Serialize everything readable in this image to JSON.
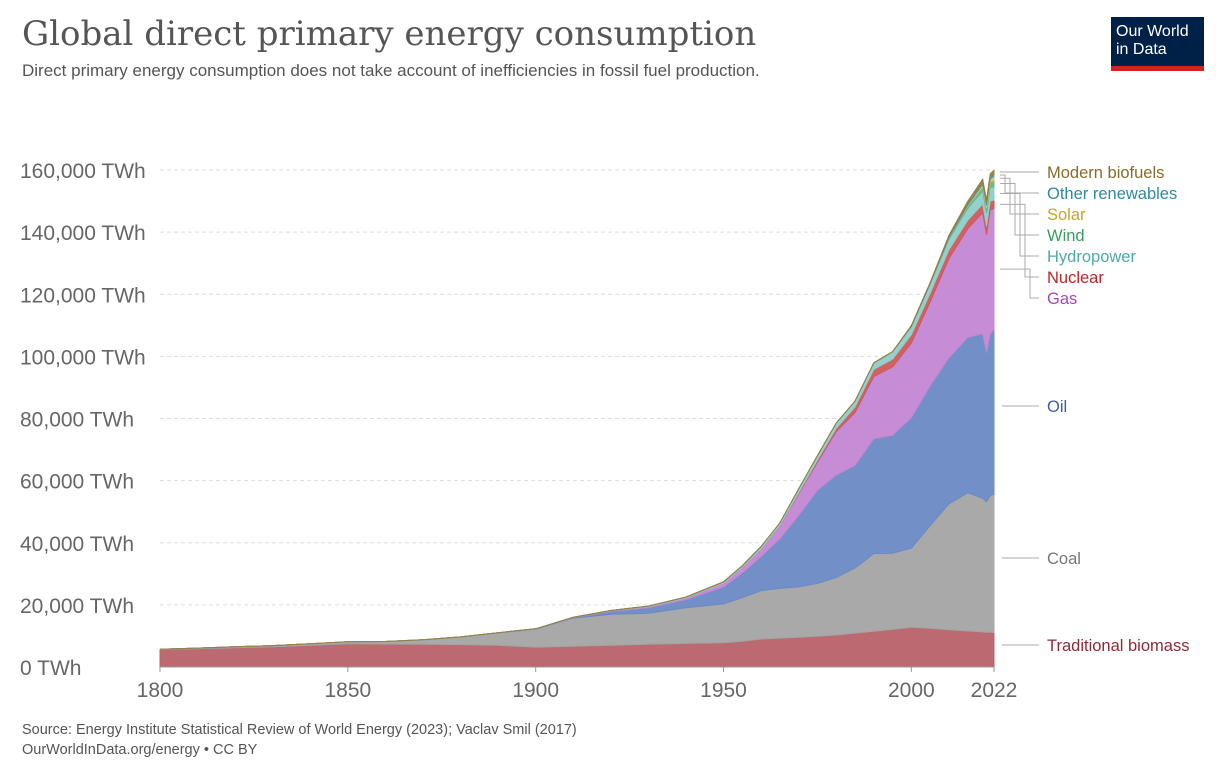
{
  "header": {
    "title": "Global direct primary energy consumption",
    "subtitle": "Direct primary energy consumption does not take account of inefficiencies in fossil fuel production.",
    "logo_line1": "Our World",
    "logo_line2": "in Data"
  },
  "footer": {
    "source": "Source: Energy Institute Statistical Review of World Energy (2023); Vaclav Smil (2017)",
    "link": "OurWorldInData.org/energy • CC BY"
  },
  "chart_data": {
    "type": "area",
    "stacked": true,
    "title": "Global direct primary energy consumption",
    "subtitle": "Direct primary energy consumption does not take account of inefficiencies in fossil fuel production.",
    "xlabel": "",
    "ylabel": "",
    "unit": "TWh",
    "xlim": [
      1800,
      2022
    ],
    "ylim": [
      0,
      160000
    ],
    "grid": "horizontal dashed",
    "x_ticks": [
      1800,
      1850,
      1900,
      1950,
      2000,
      2022
    ],
    "y_ticks": [
      {
        "value": 0,
        "label": "0 TWh"
      },
      {
        "value": 20000,
        "label": "20,000 TWh"
      },
      {
        "value": 40000,
        "label": "40,000 TWh"
      },
      {
        "value": 60000,
        "label": "60,000 TWh"
      },
      {
        "value": 80000,
        "label": "80,000 TWh"
      },
      {
        "value": 100000,
        "label": "100,000 TWh"
      },
      {
        "value": 120000,
        "label": "120,000 TWh"
      },
      {
        "value": 140000,
        "label": "140,000 TWh"
      },
      {
        "value": 160000,
        "label": "160,000 TWh"
      }
    ],
    "legend_placement": "right, labels at series ends",
    "x": [
      1800,
      1810,
      1820,
      1830,
      1840,
      1850,
      1860,
      1870,
      1880,
      1890,
      1900,
      1910,
      1920,
      1930,
      1940,
      1950,
      1955,
      1960,
      1965,
      1970,
      1975,
      1980,
      1985,
      1990,
      1995,
      2000,
      2005,
      2010,
      2015,
      2019,
      2020,
      2021,
      2022
    ],
    "series": [
      {
        "name": "Traditional biomass",
        "color": "#b8626a",
        "values": [
          5600,
          5900,
          6200,
          6500,
          7000,
          7500,
          7400,
          7300,
          7200,
          7000,
          6400,
          6700,
          7000,
          7300,
          7600,
          7800,
          8300,
          9000,
          9300,
          9600,
          9900,
          10300,
          10900,
          11500,
          12100,
          12800,
          12500,
          12000,
          11600,
          11300,
          11200,
          11200,
          11100
        ]
      },
      {
        "name": "Coal",
        "color": "#a4a4a4",
        "values": [
          100,
          200,
          300,
          400,
          500,
          600,
          800,
          1500,
          2500,
          4000,
          5800,
          9000,
          10000,
          10000,
          11500,
          12500,
          14000,
          15600,
          16000,
          16200,
          17000,
          18500,
          21000,
          25000,
          24500,
          25500,
          33000,
          40500,
          44500,
          43000,
          42000,
          44000,
          44500
        ]
      },
      {
        "name": "Oil",
        "color": "#6a8ac4",
        "values": [
          0,
          0,
          0,
          0,
          0,
          0,
          0,
          0,
          0,
          50,
          100,
          200,
          900,
          1800,
          2600,
          5500,
          8000,
          11000,
          16000,
          23000,
          30000,
          33000,
          33000,
          37000,
          38000,
          42000,
          45000,
          47000,
          50000,
          53000,
          48000,
          52000,
          53000
        ]
      },
      {
        "name": "Gas",
        "color": "#c386d3",
        "values": [
          0,
          0,
          0,
          0,
          0,
          0,
          0,
          0,
          0,
          0,
          0,
          100,
          200,
          300,
          500,
          1200,
          1800,
          2500,
          4200,
          7000,
          9000,
          14000,
          17000,
          20000,
          22000,
          24000,
          27000,
          32000,
          35000,
          39000,
          38000,
          40000,
          39000
        ]
      },
      {
        "name": "Nuclear",
        "color": "#d0585a",
        "values": [
          0,
          0,
          0,
          0,
          0,
          0,
          0,
          0,
          0,
          0,
          0,
          0,
          0,
          0,
          0,
          0,
          0,
          0,
          100,
          300,
          700,
          1000,
          1800,
          2300,
          2500,
          2700,
          2800,
          2800,
          2700,
          2800,
          2700,
          2800,
          2700
        ]
      },
      {
        "name": "Hydropower",
        "color": "#8ecfc9",
        "values": [
          0,
          0,
          0,
          0,
          0,
          0,
          0,
          0,
          0,
          0,
          0,
          40,
          80,
          200,
          300,
          400,
          500,
          700,
          800,
          1200,
          1400,
          1700,
          1900,
          2100,
          2400,
          2600,
          2900,
          3400,
          3800,
          4200,
          4300,
          4300,
          4300
        ]
      },
      {
        "name": "Wind",
        "color": "#6bb58a",
        "values": [
          0,
          0,
          0,
          0,
          0,
          0,
          0,
          0,
          0,
          0,
          0,
          0,
          0,
          0,
          0,
          0,
          0,
          0,
          0,
          0,
          0,
          0,
          0,
          0,
          0,
          20,
          100,
          350,
          800,
          1400,
          1600,
          1800,
          2100
        ]
      },
      {
        "name": "Solar",
        "color": "#e5c267",
        "values": [
          0,
          0,
          0,
          0,
          0,
          0,
          0,
          0,
          0,
          0,
          0,
          0,
          0,
          0,
          0,
          0,
          0,
          0,
          0,
          0,
          0,
          0,
          0,
          0,
          0,
          0,
          0,
          30,
          250,
          700,
          850,
          1000,
          1300
        ]
      },
      {
        "name": "Other renewables",
        "color": "#4c9db3",
        "values": [
          0,
          0,
          0,
          0,
          0,
          0,
          0,
          0,
          0,
          0,
          0,
          0,
          0,
          0,
          0,
          0,
          0,
          0,
          0,
          0,
          0,
          0,
          0,
          0,
          0,
          250,
          300,
          400,
          550,
          700,
          750,
          760,
          770
        ]
      },
      {
        "name": "Modern biofuels",
        "color": "#9a7d42",
        "values": [
          0,
          0,
          0,
          0,
          0,
          0,
          0,
          0,
          0,
          0,
          0,
          0,
          0,
          0,
          0,
          0,
          0,
          0,
          0,
          0,
          0,
          0,
          0,
          0,
          0,
          100,
          150,
          500,
          700,
          950,
          900,
          960,
          1100
        ]
      }
    ]
  }
}
